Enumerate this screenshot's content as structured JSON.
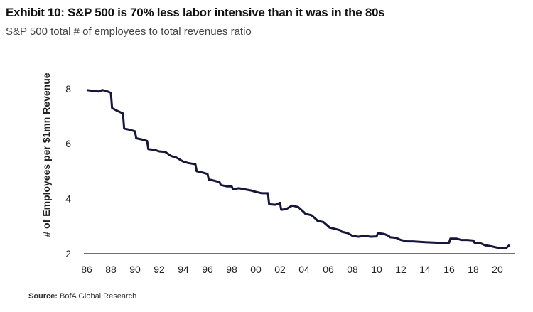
{
  "chart_data": {
    "type": "line",
    "title": "Exhibit 10: S&P 500 is 70% less labor intensive than it was in the 80s",
    "subtitle": "S&P 500 total # of employees to total revenues ratio",
    "xlabel": "",
    "ylabel": "# of Employees per $1mn Revenue",
    "ylim": [
      2,
      8
    ],
    "xlim": [
      1986,
      2021
    ],
    "yticks": [
      "2",
      "4",
      "6",
      "8"
    ],
    "xticks": [
      "86",
      "88",
      "90",
      "92",
      "94",
      "96",
      "98",
      "00",
      "02",
      "04",
      "06",
      "08",
      "10",
      "12",
      "14",
      "16",
      "18",
      "20"
    ],
    "grid": false,
    "series": [
      {
        "name": "Employees per $1mn revenue",
        "color": "#16163a",
        "x": [
          1986,
          1986.5,
          1987,
          1987.3,
          1987.6,
          1988,
          1988.1,
          1988.5,
          1989,
          1989.1,
          1989.6,
          1990,
          1990.1,
          1990.6,
          1991,
          1991.1,
          1991.6,
          1992,
          1992.5,
          1993,
          1993.4,
          1994,
          1994.4,
          1995,
          1995.1,
          1995.6,
          1996,
          1996.1,
          1996.6,
          1997,
          1997.1,
          1997.6,
          1998,
          1998.1,
          1998.6,
          1999,
          1999.6,
          2000,
          2000.5,
          2001,
          2001.1,
          2001.6,
          2002,
          2002.1,
          2002.5,
          2003,
          2003.5,
          2004,
          2004.1,
          2004.6,
          2005,
          2005.1,
          2005.6,
          2006,
          2006.1,
          2006.6,
          2007,
          2007.1,
          2007.6,
          2008,
          2008.5,
          2009,
          2009.5,
          2010,
          2010.1,
          2010.6,
          2011,
          2011.1,
          2011.6,
          2012,
          2012.5,
          2013,
          2014,
          2015,
          2015.5,
          2016,
          2016.1,
          2016.6,
          2017,
          2017.5,
          2018,
          2018.1,
          2018.6,
          2019,
          2019.1,
          2019.6,
          2020,
          2020.7,
          2021
        ],
        "values": [
          7.95,
          7.92,
          7.9,
          7.95,
          7.92,
          7.85,
          7.3,
          7.2,
          7.1,
          6.55,
          6.5,
          6.45,
          6.2,
          6.15,
          6.1,
          5.8,
          5.78,
          5.72,
          5.7,
          5.55,
          5.5,
          5.35,
          5.3,
          5.25,
          5.0,
          4.95,
          4.9,
          4.7,
          4.65,
          4.6,
          4.5,
          4.45,
          4.45,
          4.35,
          4.38,
          4.35,
          4.3,
          4.25,
          4.2,
          4.2,
          3.8,
          3.78,
          3.85,
          3.6,
          3.62,
          3.75,
          3.7,
          3.5,
          3.45,
          3.4,
          3.25,
          3.2,
          3.15,
          3.0,
          2.95,
          2.9,
          2.85,
          2.8,
          2.75,
          2.65,
          2.62,
          2.65,
          2.62,
          2.63,
          2.75,
          2.72,
          2.65,
          2.6,
          2.58,
          2.5,
          2.45,
          2.45,
          2.42,
          2.4,
          2.38,
          2.4,
          2.55,
          2.55,
          2.5,
          2.5,
          2.48,
          2.4,
          2.38,
          2.3,
          2.3,
          2.26,
          2.22,
          2.2,
          2.32
        ]
      }
    ]
  },
  "source": {
    "label": "Source:",
    "text": "BofA Global Research"
  }
}
